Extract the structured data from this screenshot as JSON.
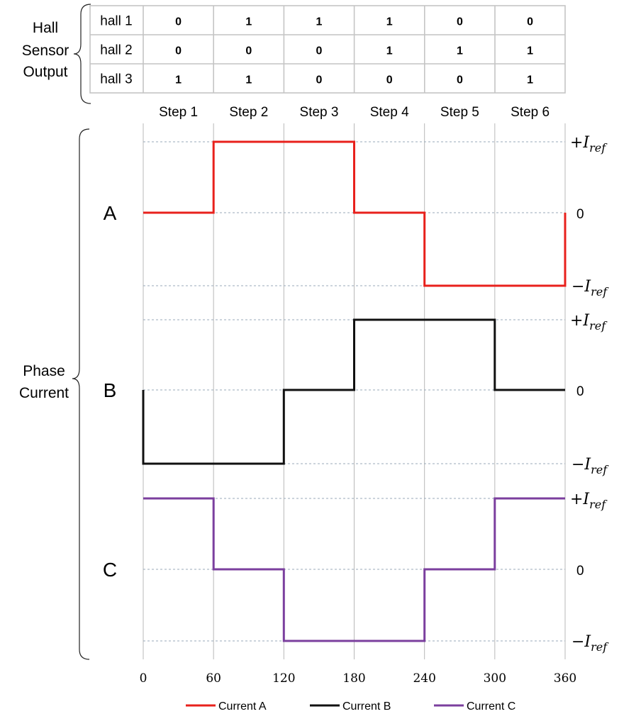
{
  "hall_table": {
    "group_label": [
      "Hall",
      "Sensor",
      "Output"
    ],
    "rows": [
      {
        "name": "hall 1",
        "values": [
          "0",
          "1",
          "1",
          "1",
          "0",
          "0"
        ]
      },
      {
        "name": "hall 2",
        "values": [
          "0",
          "0",
          "0",
          "1",
          "1",
          "1"
        ]
      },
      {
        "name": "hall 3",
        "values": [
          "1",
          "1",
          "0",
          "0",
          "0",
          "1"
        ]
      }
    ],
    "steps": [
      "Step 1",
      "Step 2",
      "Step 3",
      "Step 4",
      "Step 5",
      "Step 6"
    ]
  },
  "chart_data": {
    "type": "line",
    "group_label": [
      "Phase",
      "Current"
    ],
    "x_ticks": [
      "0",
      "60",
      "120",
      "180",
      "240",
      "300",
      "360"
    ],
    "xlim": [
      0,
      360
    ],
    "level_labels": {
      "pos": "+I",
      "zero": "0",
      "neg": "−I",
      "subscript": "ref"
    },
    "colors": {
      "A": "#e8211c",
      "B": "#111111",
      "C": "#7b3f9e"
    },
    "series": [
      {
        "name": "Current A",
        "panel_label": "A",
        "x": [
          0,
          60,
          60,
          180,
          180,
          240,
          240,
          360,
          360
        ],
        "y": [
          0,
          0,
          1,
          1,
          0,
          0,
          -1,
          -1,
          0
        ]
      },
      {
        "name": "Current B",
        "panel_label": "B",
        "x": [
          0,
          0,
          120,
          120,
          180,
          180,
          300,
          300,
          360
        ],
        "y": [
          0,
          -1,
          -1,
          0,
          0,
          1,
          1,
          0,
          0
        ]
      },
      {
        "name": "Current C",
        "panel_label": "C",
        "x": [
          0,
          60,
          60,
          120,
          120,
          240,
          240,
          300,
          300,
          360
        ],
        "y": [
          1,
          1,
          0,
          0,
          -1,
          -1,
          0,
          0,
          1,
          1
        ]
      }
    ],
    "legend": [
      "Current A",
      "Current B",
      "Current C"
    ]
  }
}
